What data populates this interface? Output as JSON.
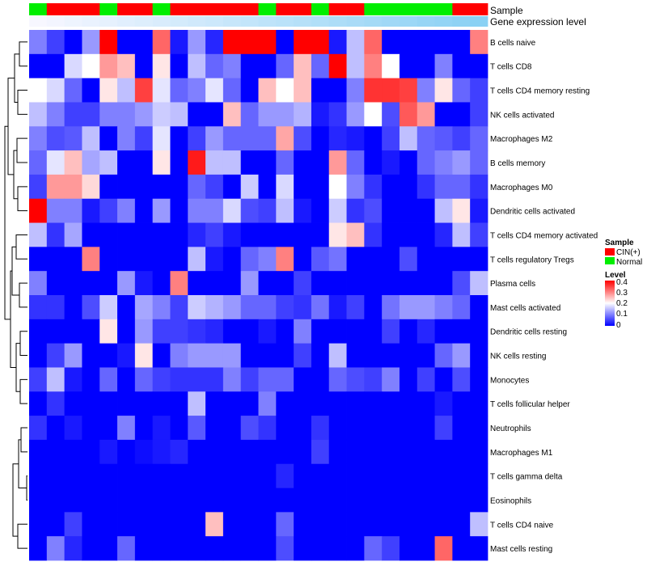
{
  "chart_data": {
    "type": "heatmap",
    "title": "",
    "annotation_tracks": [
      "Sample",
      "Gene expression level"
    ],
    "samples": [
      {
        "group": "Normal",
        "expression": 0.0
      },
      {
        "group": "CIN(+)",
        "expression": 0.03
      },
      {
        "group": "CIN(+)",
        "expression": 0.06
      },
      {
        "group": "CIN(+)",
        "expression": 0.09
      },
      {
        "group": "Normal",
        "expression": 0.12
      },
      {
        "group": "CIN(+)",
        "expression": 0.15
      },
      {
        "group": "CIN(+)",
        "expression": 0.18
      },
      {
        "group": "Normal",
        "expression": 0.21
      },
      {
        "group": "CIN(+)",
        "expression": 0.24
      },
      {
        "group": "CIN(+)",
        "expression": 0.27
      },
      {
        "group": "CIN(+)",
        "expression": 0.3
      },
      {
        "group": "CIN(+)",
        "expression": 0.33
      },
      {
        "group": "CIN(+)",
        "expression": 0.36
      },
      {
        "group": "Normal",
        "expression": 0.39
      },
      {
        "group": "CIN(+)",
        "expression": 0.42
      },
      {
        "group": "CIN(+)",
        "expression": 0.45
      },
      {
        "group": "Normal",
        "expression": 0.48
      },
      {
        "group": "CIN(+)",
        "expression": 0.51
      },
      {
        "group": "CIN(+)",
        "expression": 0.54
      },
      {
        "group": "Normal",
        "expression": 0.57
      },
      {
        "group": "Normal",
        "expression": 0.6
      },
      {
        "group": "Normal",
        "expression": 0.63
      },
      {
        "group": "Normal",
        "expression": 0.66
      },
      {
        "group": "Normal",
        "expression": 0.69
      },
      {
        "group": "CIN(+)",
        "expression": 0.72
      },
      {
        "group": "CIN(+)",
        "expression": 0.75
      }
    ],
    "rows": [
      "B cells naive",
      "T cells CD8",
      "T cells CD4 memory resting",
      "NK cells activated",
      "Macrophages M2",
      "B cells memory",
      "Macrophages M0",
      "Dendritic cells activated",
      "T cells CD4 memory activated",
      "T cells regulatory  Tregs",
      "Plasma cells",
      "Mast cells activated",
      "Dendritic cells resting",
      "NK cells resting",
      "Monocytes",
      "T cells follicular helper",
      "Neutrophils",
      "Macrophages M1",
      "T cells gamma delta",
      "Eosinophils",
      "T cells CD4 naive",
      "Mast cells resting"
    ],
    "values": [
      [
        0.1,
        0.05,
        0.0,
        0.12,
        0.4,
        0.0,
        0.0,
        0.32,
        0.02,
        0.12,
        0.03,
        0.4,
        0.4,
        0.4,
        0.0,
        0.4,
        0.4,
        0.02,
        0.15,
        0.32,
        0.0,
        0.0,
        0.0,
        0.0,
        0.0,
        0.3
      ],
      [
        0.0,
        0.0,
        0.17,
        0.2,
        0.28,
        0.25,
        0.0,
        0.22,
        0.0,
        0.15,
        0.08,
        0.1,
        0.0,
        0.0,
        0.08,
        0.25,
        0.08,
        0.4,
        0.15,
        0.3,
        0.2,
        0.0,
        0.0,
        0.1,
        0.0,
        0.0
      ],
      [
        0.2,
        0.17,
        0.08,
        0.0,
        0.22,
        0.15,
        0.35,
        0.18,
        0.08,
        0.1,
        0.18,
        0.08,
        0.0,
        0.25,
        0.2,
        0.25,
        0.0,
        0.0,
        0.1,
        0.36,
        0.36,
        0.35,
        0.1,
        0.22,
        0.08,
        0.05
      ],
      [
        0.15,
        0.1,
        0.05,
        0.05,
        0.1,
        0.1,
        0.12,
        0.16,
        0.15,
        0.0,
        0.0,
        0.25,
        0.08,
        0.12,
        0.12,
        0.14,
        0.02,
        0.04,
        0.12,
        0.2,
        0.06,
        0.33,
        0.28,
        0.0,
        0.0,
        0.05
      ],
      [
        0.1,
        0.06,
        0.07,
        0.15,
        0.0,
        0.1,
        0.05,
        0.18,
        0.0,
        0.05,
        0.12,
        0.08,
        0.08,
        0.08,
        0.27,
        0.06,
        0.0,
        0.03,
        0.02,
        0.0,
        0.05,
        0.15,
        0.08,
        0.07,
        0.05,
        0.08
      ],
      [
        0.08,
        0.18,
        0.25,
        0.13,
        0.15,
        0.0,
        0.0,
        0.22,
        0.0,
        0.38,
        0.15,
        0.15,
        0.0,
        0.0,
        0.08,
        0.0,
        0.0,
        0.28,
        0.08,
        0.0,
        0.02,
        0.0,
        0.08,
        0.1,
        0.12,
        0.08
      ],
      [
        0.05,
        0.28,
        0.28,
        0.23,
        0.0,
        0.0,
        0.0,
        0.0,
        0.0,
        0.08,
        0.05,
        0.0,
        0.16,
        0.0,
        0.17,
        0.0,
        0.0,
        0.2,
        0.1,
        0.04,
        0.0,
        0.0,
        0.04,
        0.08,
        0.08,
        0.04
      ],
      [
        0.4,
        0.1,
        0.1,
        0.02,
        0.05,
        0.1,
        0.0,
        0.12,
        0.0,
        0.1,
        0.1,
        0.17,
        0.06,
        0.05,
        0.15,
        0.02,
        0.0,
        0.16,
        0.04,
        0.06,
        0.0,
        0.0,
        0.0,
        0.15,
        0.22,
        0.02
      ],
      [
        0.15,
        0.04,
        0.13,
        0.0,
        0.0,
        0.0,
        0.0,
        0.0,
        0.0,
        0.03,
        0.05,
        0.02,
        0.0,
        0.0,
        0.0,
        0.0,
        0.0,
        0.22,
        0.25,
        0.04,
        0.0,
        0.0,
        0.0,
        0.03,
        0.15,
        0.05
      ],
      [
        0.0,
        0.0,
        0.0,
        0.3,
        0.0,
        0.0,
        0.0,
        0.0,
        0.0,
        0.15,
        0.02,
        0.0,
        0.08,
        0.1,
        0.3,
        0.0,
        0.07,
        0.09,
        0.0,
        0.0,
        0.0,
        0.06,
        0.0,
        0.0,
        0.0,
        0.0
      ],
      [
        0.1,
        0.0,
        0.0,
        0.0,
        0.0,
        0.12,
        0.02,
        0.0,
        0.3,
        0.0,
        0.0,
        0.0,
        0.12,
        0.0,
        0.0,
        0.05,
        0.0,
        0.0,
        0.0,
        0.0,
        0.0,
        0.0,
        0.0,
        0.0,
        0.06,
        0.15
      ],
      [
        0.04,
        0.04,
        0.0,
        0.06,
        0.16,
        0.0,
        0.13,
        0.1,
        0.05,
        0.16,
        0.14,
        0.12,
        0.08,
        0.08,
        0.05,
        0.04,
        0.09,
        0.02,
        0.05,
        0.0,
        0.09,
        0.12,
        0.12,
        0.1,
        0.08,
        0.0
      ],
      [
        0.0,
        0.0,
        0.0,
        0.0,
        0.22,
        0.0,
        0.12,
        0.05,
        0.05,
        0.04,
        0.03,
        0.0,
        0.0,
        0.02,
        0.0,
        0.1,
        0.0,
        0.0,
        0.0,
        0.0,
        0.05,
        0.0,
        0.03,
        0.0,
        0.0,
        0.0
      ],
      [
        0.0,
        0.05,
        0.12,
        0.0,
        0.0,
        0.02,
        0.22,
        0.0,
        0.1,
        0.12,
        0.12,
        0.12,
        0.0,
        0.0,
        0.0,
        0.05,
        0.0,
        0.15,
        0.0,
        0.0,
        0.0,
        0.0,
        0.0,
        0.08,
        0.12,
        0.0
      ],
      [
        0.05,
        0.15,
        0.02,
        0.0,
        0.08,
        0.0,
        0.08,
        0.05,
        0.04,
        0.04,
        0.04,
        0.1,
        0.05,
        0.08,
        0.08,
        0.0,
        0.0,
        0.08,
        0.06,
        0.05,
        0.1,
        0.0,
        0.05,
        0.0,
        0.06,
        0.0
      ],
      [
        0.0,
        0.04,
        0.0,
        0.0,
        0.0,
        0.0,
        0.0,
        0.0,
        0.0,
        0.15,
        0.0,
        0.0,
        0.0,
        0.1,
        0.0,
        0.0,
        0.0,
        0.0,
        0.0,
        0.0,
        0.0,
        0.0,
        0.0,
        0.02,
        0.0,
        0.0
      ],
      [
        0.04,
        0.0,
        0.02,
        0.0,
        0.0,
        0.1,
        0.0,
        0.02,
        0.0,
        0.07,
        0.0,
        0.0,
        0.06,
        0.04,
        0.0,
        0.0,
        0.04,
        0.0,
        0.0,
        0.0,
        0.0,
        0.0,
        0.0,
        0.05,
        0.0,
        0.0
      ],
      [
        0.0,
        0.0,
        0.0,
        0.0,
        0.02,
        0.0,
        0.01,
        0.02,
        0.03,
        0.0,
        0.0,
        0.0,
        0.0,
        0.0,
        0.0,
        0.0,
        0.05,
        0.0,
        0.0,
        0.0,
        0.0,
        0.0,
        0.0,
        0.0,
        0.0,
        0.0
      ],
      [
        0.0,
        0.0,
        0.0,
        0.0,
        0.0,
        0.0,
        0.0,
        0.0,
        0.0,
        0.0,
        0.0,
        0.0,
        0.0,
        0.0,
        0.03,
        0.0,
        0.0,
        0.0,
        0.0,
        0.0,
        0.0,
        0.0,
        0.0,
        0.0,
        0.0,
        0.0
      ],
      [
        0.0,
        0.0,
        0.0,
        0.0,
        0.0,
        0.0,
        0.0,
        0.0,
        0.0,
        0.0,
        0.0,
        0.0,
        0.0,
        0.0,
        0.0,
        0.0,
        0.0,
        0.0,
        0.0,
        0.0,
        0.0,
        0.0,
        0.0,
        0.0,
        0.0,
        0.0
      ],
      [
        0.0,
        0.0,
        0.05,
        0.0,
        0.0,
        0.0,
        0.0,
        0.0,
        0.0,
        0.0,
        0.25,
        0.0,
        0.0,
        0.0,
        0.08,
        0.0,
        0.0,
        0.0,
        0.0,
        0.0,
        0.0,
        0.0,
        0.0,
        0.0,
        0.0,
        0.15
      ],
      [
        0.0,
        0.1,
        0.03,
        0.0,
        0.0,
        0.08,
        0.0,
        0.0,
        0.0,
        0.0,
        0.0,
        0.0,
        0.0,
        0.0,
        0.06,
        0.0,
        0.0,
        0.0,
        0.0,
        0.08,
        0.05,
        0.0,
        0.0,
        0.32,
        0.0,
        0.0
      ]
    ],
    "color_scale": {
      "min": 0,
      "max": 0.4,
      "low": "#0000ff",
      "mid": "#ffffff",
      "high": "#ff0000"
    },
    "legend": {
      "position": "right",
      "sample_title": "Sample",
      "sample_entries": [
        {
          "label": "CIN(+)",
          "color": "#ff0000"
        },
        {
          "label": "Normal",
          "color": "#00ee00"
        }
      ],
      "level_title": "Level",
      "level_ticks": [
        "0.4",
        "0.3",
        "0.2",
        "0.1",
        "0"
      ]
    },
    "dendrogram": "rows"
  }
}
